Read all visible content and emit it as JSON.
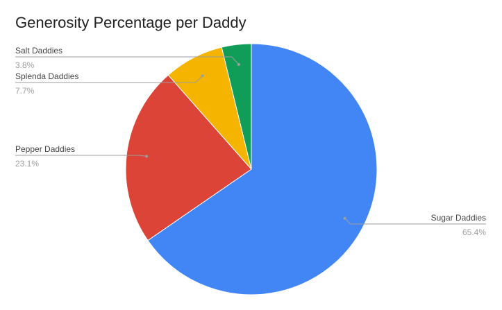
{
  "chart_data": {
    "type": "pie",
    "title": "Generosity Percentage per Daddy",
    "slices": [
      {
        "label": "Sugar Daddies",
        "percent_label": "65.4%",
        "value": 65.4,
        "color": "#4285F4"
      },
      {
        "label": "Pepper Daddies",
        "percent_label": "23.1%",
        "value": 23.1,
        "color": "#DB4437"
      },
      {
        "label": "Splenda Daddies",
        "percent_label": "7.7%",
        "value": 7.7,
        "color": "#F4B400"
      },
      {
        "label": "Salt Daddies",
        "percent_label": "3.8%",
        "value": 3.8,
        "color": "#0F9D58"
      }
    ],
    "legend": "none",
    "label_style": "callout"
  }
}
